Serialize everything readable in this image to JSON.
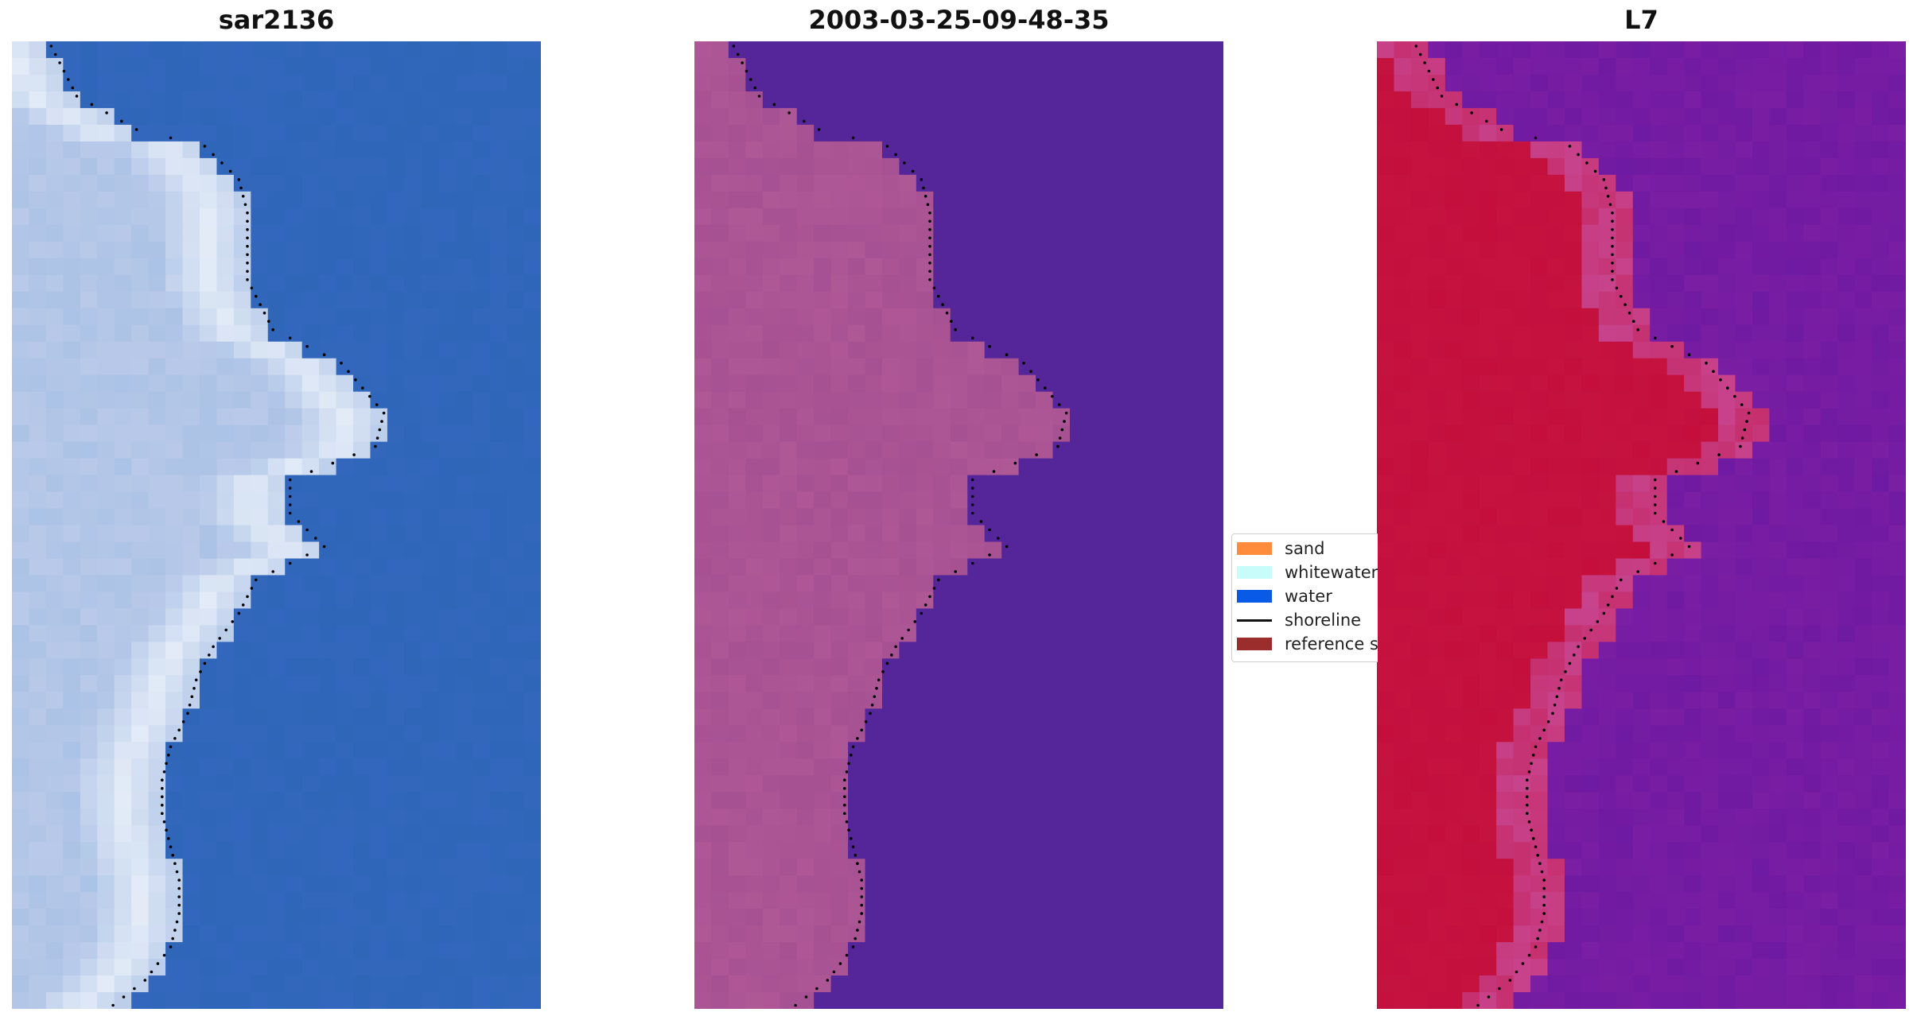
{
  "panels": [
    {
      "title": "sar2136",
      "kind": "rgb"
    },
    {
      "title": "2003-03-25-09-48-35",
      "kind": "classified"
    },
    {
      "title": "L7",
      "kind": "mndwi"
    }
  ],
  "legend": {
    "items": [
      {
        "label": "sand",
        "color": "#ff8c3c",
        "type": "patch"
      },
      {
        "label": "whitewater",
        "color": "#c8fcfa",
        "type": "patch"
      },
      {
        "label": "water",
        "color": "#0a5ae8",
        "type": "patch"
      },
      {
        "label": "shoreline",
        "color": "#111111",
        "type": "line"
      },
      {
        "label": "reference shoreline buffer",
        "color": "#9b2d2d",
        "type": "patch"
      }
    ]
  },
  "colors": {
    "rgb_water": "#2f66b8",
    "rgb_land": "#b9c9e9",
    "rgb_white": "#eef4fb",
    "class_water": "#55269a",
    "class_land": "#b45b98",
    "mndwi_water": "#7a1ea3",
    "mndwi_land": "#c40f3d",
    "shoreline_dots": "#000000"
  }
}
